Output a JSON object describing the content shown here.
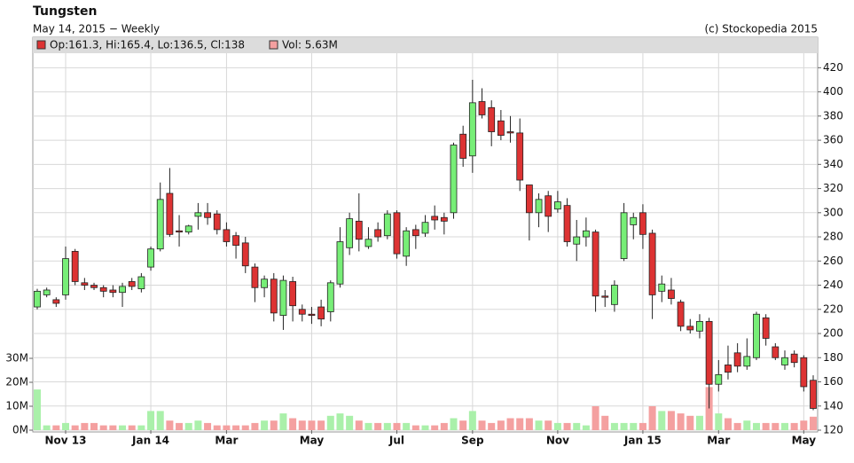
{
  "chart_data": {
    "type": "candlestick",
    "title": "Tungsten",
    "subtitle": "May 14, 2015 − Weekly",
    "credit": "(c) Stockopedia 2015",
    "legend": [
      {
        "label": "Op:161.3, Hi:165.4, Lo:136.5, Cl:138",
        "color": "#dd3333"
      },
      {
        "label": "Vol: 5.63M",
        "color": "#f4a0a0"
      }
    ],
    "categories": [
      null,
      null,
      null,
      "Nov 13",
      null,
      null,
      null,
      null,
      null,
      null,
      null,
      null,
      "Jan 14",
      null,
      null,
      null,
      null,
      null,
      null,
      null,
      "Mar",
      null,
      null,
      null,
      null,
      null,
      null,
      null,
      null,
      "May",
      null,
      null,
      null,
      null,
      null,
      null,
      null,
      null,
      "Jul",
      null,
      null,
      null,
      null,
      null,
      null,
      null,
      "Sep",
      null,
      null,
      null,
      null,
      null,
      null,
      null,
      null,
      "Nov",
      null,
      null,
      null,
      null,
      null,
      null,
      null,
      null,
      "Jan 15",
      null,
      null,
      null,
      null,
      null,
      null,
      null,
      "Mar",
      null,
      null,
      null,
      null,
      null,
      null,
      null,
      null,
      "May",
      null
    ],
    "open": [
      222,
      232,
      228,
      232,
      268,
      242,
      240,
      238,
      236,
      234,
      243,
      237,
      255,
      270,
      316,
      285,
      284,
      297,
      300,
      299,
      286,
      281,
      275,
      255,
      238,
      245,
      215,
      243,
      220,
      216,
      222,
      218,
      241,
      271,
      293,
      272,
      286,
      281,
      300,
      264,
      286,
      283,
      297,
      296,
      300,
      365,
      347,
      392,
      387,
      376,
      367,
      366,
      323,
      300,
      314,
      303,
      306,
      274,
      280,
      284,
      231,
      224,
      262,
      290,
      300,
      283,
      235,
      236,
      226,
      206,
      202,
      210,
      158,
      174,
      184,
      173,
      180,
      213,
      189,
      174,
      183,
      180,
      161.3
    ],
    "high": [
      237,
      238,
      230,
      272,
      270,
      246,
      242,
      240,
      240,
      242,
      246,
      250,
      272,
      325,
      337,
      298,
      290,
      308,
      308,
      302,
      292,
      284,
      280,
      258,
      248,
      250,
      248,
      247,
      224,
      222,
      228,
      244,
      288,
      300,
      316,
      288,
      292,
      302,
      302,
      288,
      290,
      298,
      306,
      300,
      358,
      372,
      410,
      403,
      393,
      385,
      380,
      378,
      322,
      316,
      318,
      318,
      312,
      294,
      296,
      286,
      236,
      244,
      308,
      300,
      307,
      286,
      248,
      246,
      228,
      212,
      216,
      213,
      178,
      190,
      192,
      196,
      218,
      216,
      192,
      186,
      186,
      182,
      165.4
    ],
    "low": [
      220,
      230,
      222,
      228,
      240,
      236,
      236,
      230,
      230,
      222,
      236,
      234,
      252,
      268,
      280,
      272,
      282,
      286,
      290,
      282,
      272,
      262,
      250,
      226,
      230,
      210,
      203,
      210,
      210,
      208,
      206,
      210,
      238,
      265,
      268,
      270,
      276,
      278,
      262,
      256,
      270,
      280,
      286,
      282,
      295,
      338,
      333,
      378,
      355,
      360,
      358,
      318,
      277,
      288,
      284,
      300,
      272,
      260,
      272,
      218,
      222,
      218,
      260,
      278,
      270,
      212,
      226,
      224,
      202,
      200,
      196,
      138,
      152,
      162,
      168,
      170,
      178,
      190,
      178,
      170,
      172,
      152,
      136.5
    ],
    "close": [
      235,
      236,
      225,
      262,
      243,
      240,
      238,
      235,
      234,
      239,
      239,
      247,
      270,
      311,
      282,
      284,
      289,
      300,
      296,
      286,
      276,
      273,
      256,
      238,
      245,
      217,
      244,
      223,
      216,
      215,
      212,
      242,
      276,
      295,
      278,
      278,
      280,
      299,
      266,
      285,
      281,
      292,
      294,
      293,
      356,
      345,
      391,
      381,
      367,
      364,
      366,
      327,
      300,
      311,
      297,
      309,
      276,
      280,
      285,
      231,
      230,
      240,
      300,
      296,
      282,
      232,
      241,
      229,
      206,
      203,
      210,
      158,
      166,
      168,
      173,
      181,
      216,
      196,
      180,
      180,
      176,
      156,
      138
    ],
    "volume": [
      17,
      2,
      2,
      3,
      2,
      3,
      3,
      2,
      2,
      2,
      2,
      2,
      8,
      8,
      4,
      3,
      3,
      4,
      3,
      2,
      2,
      2,
      2,
      3,
      4,
      4,
      7,
      5,
      4,
      4,
      4,
      6,
      7,
      6,
      4,
      3,
      3,
      3,
      3,
      3,
      2,
      2,
      2,
      3,
      5,
      4,
      8,
      4,
      3,
      4,
      5,
      5,
      5,
      4,
      4,
      3,
      3,
      3,
      2,
      10,
      6,
      3,
      3,
      3,
      3,
      10,
      8,
      8,
      7,
      6,
      6,
      18,
      7,
      5,
      3,
      4,
      3,
      3,
      3,
      3,
      3,
      4,
      5.63
    ],
    "up_color": "#77ee77",
    "down_color": "#dd3333",
    "volume_up_color": "#aaf0aa",
    "volume_down_color": "#f4a0a0",
    "ylim": [
      120,
      432
    ],
    "yticks": [
      120,
      140,
      160,
      180,
      200,
      220,
      240,
      260,
      280,
      300,
      320,
      340,
      360,
      380,
      400,
      420
    ],
    "y2lim": [
      0,
      30
    ],
    "y2ticks": [
      {
        "value": 0,
        "label": "0M"
      },
      {
        "value": 10,
        "label": "10M"
      },
      {
        "value": 20,
        "label": "20M"
      },
      {
        "value": 30,
        "label": "30M"
      }
    ],
    "grid": true
  }
}
